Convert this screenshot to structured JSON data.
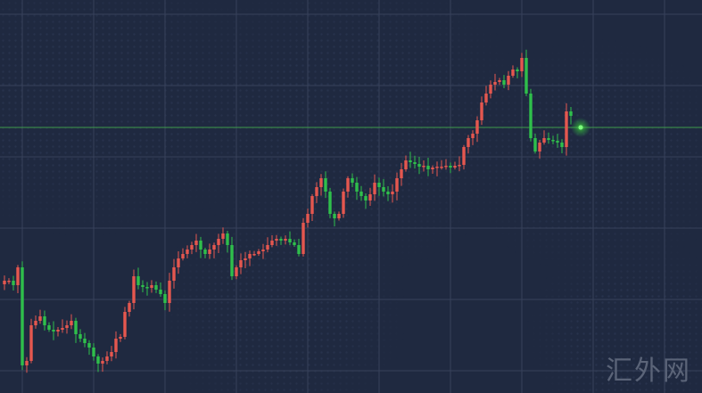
{
  "chart_data": {
    "type": "candlestick",
    "title": "",
    "xlabel": "",
    "ylabel": "",
    "ylim": [
      0,
      441
    ],
    "grid": true,
    "up_color": "#e5574f",
    "down_color": "#2fbf4b",
    "current_price_line_color": "#3d9a4a",
    "current_price": 298,
    "background": "#1f2940",
    "closes": [
      126,
      126,
      121,
      141,
      31,
      36,
      76,
      81,
      86,
      76,
      71,
      69,
      71,
      73,
      76,
      81,
      66,
      61,
      56,
      51,
      41,
      33,
      36,
      41,
      46,
      61,
      63,
      91,
      101,
      131,
      121,
      119,
      118,
      121,
      116,
      111,
      101,
      126,
      141,
      151,
      156,
      161,
      166,
      171,
      161,
      156,
      161,
      166,
      173,
      179,
      166,
      131,
      141,
      149,
      151,
      156,
      156,
      159,
      161,
      166,
      171,
      173,
      171,
      173,
      169,
      166,
      156,
      191,
      201,
      221,
      231,
      241,
      226,
      201,
      196,
      201,
      226,
      241,
      236,
      226,
      221,
      216,
      223,
      236,
      231,
      226,
      223,
      226,
      241,
      251,
      261,
      259,
      257,
      254,
      255,
      251,
      253,
      254,
      254,
      255,
      253,
      255,
      256,
      276,
      286,
      291,
      306,
      326,
      336,
      346,
      349,
      351,
      346,
      356,
      363,
      361,
      376,
      336,
      286,
      271,
      281,
      286,
      284,
      283,
      281,
      276,
      316,
      311
    ]
  },
  "watermark": "汇外网"
}
